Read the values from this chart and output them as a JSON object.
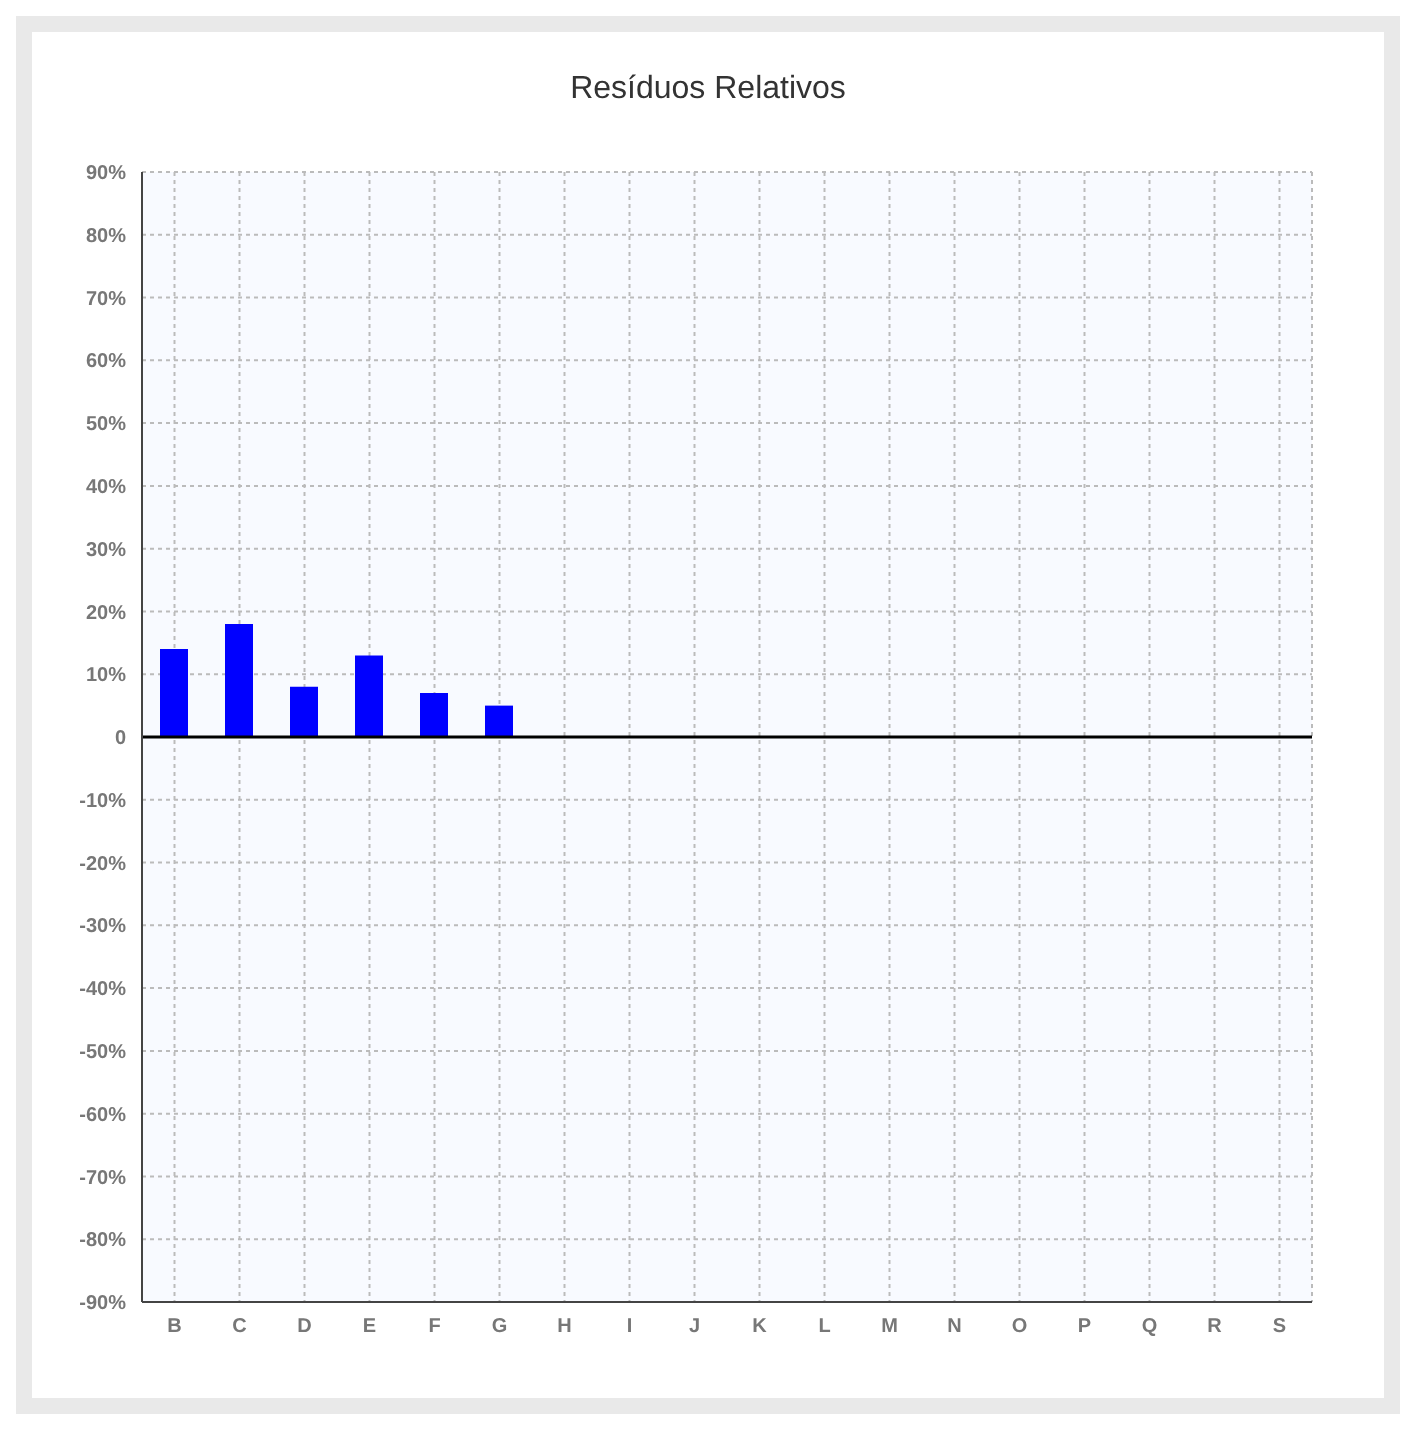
{
  "chart_data": {
    "type": "bar",
    "title": "Resíduos Relativos",
    "categories": [
      "B",
      "C",
      "D",
      "E",
      "F",
      "G",
      "H",
      "I",
      "J",
      "K",
      "L",
      "M",
      "N",
      "O",
      "P",
      "Q",
      "R",
      "S"
    ],
    "series": [
      {
        "color": "#0000ff",
        "values": [
          14,
          18,
          8,
          13,
          7,
          5,
          null,
          null,
          null,
          null,
          null,
          null,
          null,
          null,
          null,
          null,
          null,
          null
        ]
      }
    ],
    "ylim": [
      -90,
      90
    ],
    "yticks": [
      {
        "value": -90,
        "label": "-90%"
      },
      {
        "value": -80,
        "label": "-80%"
      },
      {
        "value": -70,
        "label": "-70%"
      },
      {
        "value": -60,
        "label": "-60%"
      },
      {
        "value": -50,
        "label": "-50%"
      },
      {
        "value": -40,
        "label": "-40%"
      },
      {
        "value": -30,
        "label": "-30%"
      },
      {
        "value": -20,
        "label": "-20%"
      },
      {
        "value": -10,
        "label": "-10%"
      },
      0,
      {
        "value": 10,
        "label": "10%"
      },
      {
        "value": 20,
        "label": "20%"
      },
      {
        "value": 30,
        "label": "30%"
      },
      {
        "value": 40,
        "label": "40%"
      },
      {
        "value": 50,
        "label": "50%"
      },
      {
        "value": 60,
        "label": "60%"
      },
      {
        "value": 70,
        "label": "70%"
      },
      {
        "value": 80,
        "label": "80%"
      },
      {
        "value": 90,
        "label": "90%"
      }
    ],
    "ref_lines": [
      {
        "axis": "y",
        "value": 0,
        "color": "#000000"
      }
    ],
    "grid": true
  }
}
